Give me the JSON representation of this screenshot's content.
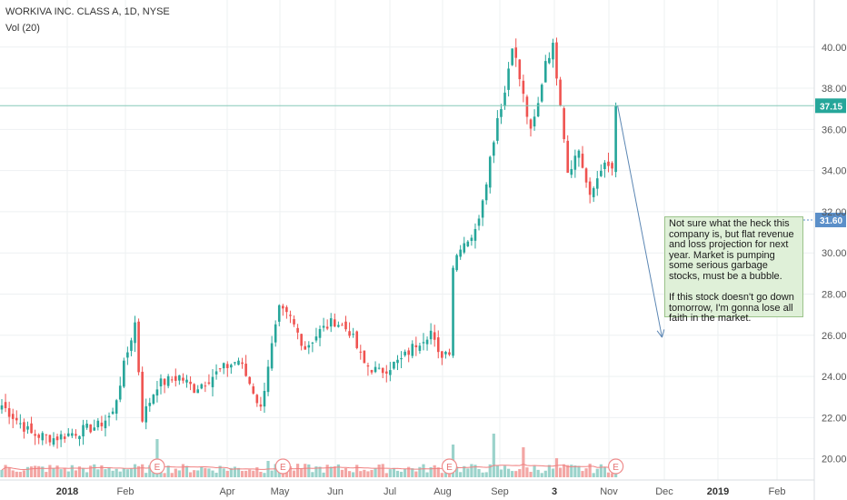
{
  "header": {
    "symbol_line": "WORKIVA INC. CLASS A, 1D, NYSE",
    "volume_line": "Vol (20)"
  },
  "annotation": {
    "text": "Not sure what the heck this company is, but flat revenue and loss projection for next year. Market is pumping some serious garbage stocks, must be a bubble.\n\nIf this stock doesn't go down tomorrow, I'm gonna lose all faith in the market."
  },
  "colors": {
    "up": "#26a69a",
    "down": "#ef5350",
    "up_volume": "#9bd3cb",
    "down_volume": "#f3a6a4",
    "price_line": "#86c9b9",
    "crosshair": "#5b8fc9",
    "arrow": "#5b86b3",
    "grid": "#eef0f2",
    "earnings": "#ef8c8c",
    "ma": "#f08080"
  },
  "chart_data": {
    "type": "candlestick",
    "title": "WORKIVA INC. CLASS A, 1D, NYSE",
    "ylim": [
      19.5,
      41.8
    ],
    "y_ticks": [
      "40.00",
      "38.00",
      "36.00",
      "34.00",
      "32.00",
      "30.00",
      "28.00",
      "26.00",
      "24.00",
      "22.00",
      "20.00"
    ],
    "x_labels": [
      "2018",
      "Feb",
      "Apr",
      "May",
      "Jun",
      "Jul",
      "Aug",
      "Sep",
      "3",
      "Nov",
      "Dec",
      "2019",
      "Feb"
    ],
    "last_price_label": "37.15",
    "crosshair_price_label": "31.60",
    "last_price": 37.15,
    "crosshair_price": 31.6,
    "grid": true,
    "legend": "top-left",
    "earnings_marker_label": "E",
    "waypoints": [
      [
        0,
        22.6
      ],
      [
        8,
        21.2
      ],
      [
        14,
        21.0
      ],
      [
        22,
        21.4
      ],
      [
        26,
        21.6
      ],
      [
        30,
        22.2
      ],
      [
        33,
        24.5
      ],
      [
        36,
        26.6
      ],
      [
        38,
        22.0
      ],
      [
        42,
        23.6
      ],
      [
        48,
        24.0
      ],
      [
        52,
        23.4
      ],
      [
        60,
        24.4
      ],
      [
        64,
        24.8
      ],
      [
        68,
        23.3
      ],
      [
        70,
        22.4
      ],
      [
        72,
        24.6
      ],
      [
        75,
        27.2
      ],
      [
        78,
        26.8
      ],
      [
        82,
        25.4
      ],
      [
        86,
        26.2
      ],
      [
        90,
        26.7
      ],
      [
        94,
        26.2
      ],
      [
        98,
        24.6
      ],
      [
        102,
        24.2
      ],
      [
        108,
        24.8
      ],
      [
        112,
        25.6
      ],
      [
        116,
        26.2
      ],
      [
        118,
        25.0
      ],
      [
        121,
        25.3
      ],
      [
        122,
        29.4
      ],
      [
        124,
        30.4
      ],
      [
        128,
        31.0
      ],
      [
        131,
        33.6
      ],
      [
        134,
        36.6
      ],
      [
        136,
        37.8
      ],
      [
        138,
        40.2
      ],
      [
        141,
        37.6
      ],
      [
        143,
        35.8
      ],
      [
        145,
        37.2
      ],
      [
        147,
        39.4
      ],
      [
        149,
        40.0
      ],
      [
        151,
        37.4
      ],
      [
        153,
        34.0
      ],
      [
        156,
        35.0
      ],
      [
        159,
        32.6
      ],
      [
        162,
        34.2
      ],
      [
        165,
        34.1
      ],
      [
        166,
        37.15
      ]
    ],
    "volume_spikes": [
      {
        "i": 42,
        "v": 14
      },
      {
        "i": 122,
        "v": 12
      },
      {
        "i": 133,
        "v": 16
      },
      {
        "i": 141,
        "v": 11
      },
      {
        "i": 72,
        "v": 6
      },
      {
        "i": 150,
        "v": 7
      }
    ],
    "earnings_days": [
      42,
      76,
      121,
      166
    ],
    "arrow": {
      "from": [
        166,
        37.15
      ],
      "to": [
        178,
        25.9
      ]
    }
  }
}
